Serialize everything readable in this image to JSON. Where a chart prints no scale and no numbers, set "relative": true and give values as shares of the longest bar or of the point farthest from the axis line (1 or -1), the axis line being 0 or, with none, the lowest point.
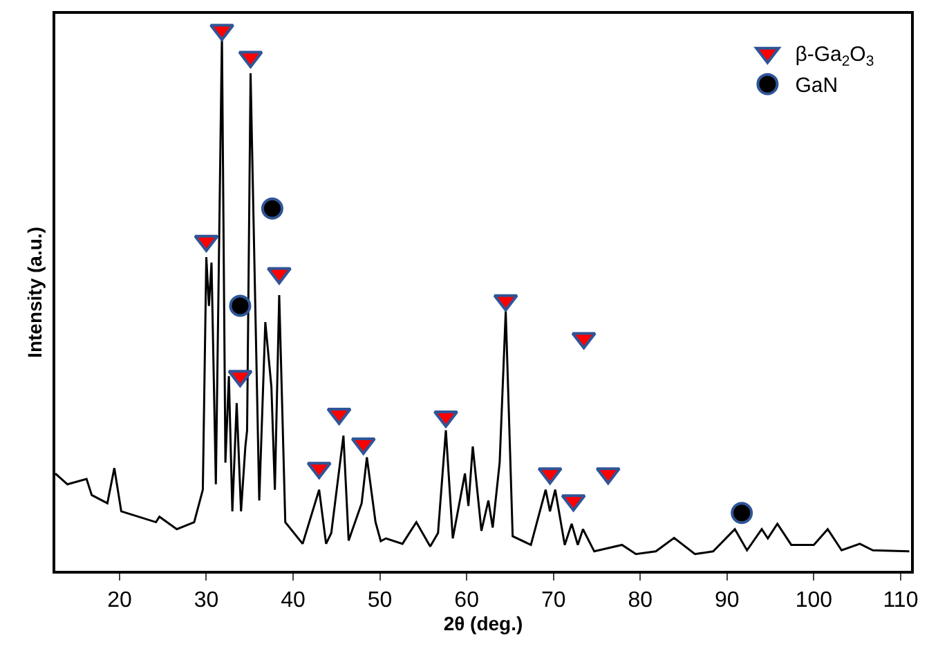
{
  "chart_data": {
    "type": "line",
    "xlabel": "2θ (deg.)",
    "ylabel": "Intensity (a.u.)",
    "relative": true,
    "xlim": [
      12.6,
      111.2
    ],
    "xticks": [
      20,
      30,
      40,
      50,
      60,
      70,
      80,
      90,
      100,
      110
    ],
    "legend": "top right",
    "series": [
      {
        "color": "#000000",
        "marker": "none",
        "x": [
          12.6,
          14.0,
          16.2,
          16.8,
          18.6,
          19.4,
          20.2,
          24.2,
          24.6,
          26.6,
          28.6,
          29.6,
          30.0,
          30.3,
          30.6,
          31.1,
          31.8,
          32.2,
          32.6,
          33.0,
          33.5,
          34.0,
          34.5,
          34.7,
          35.1,
          36.1,
          36.8,
          37.5,
          37.9,
          38.4,
          39.1,
          41.1,
          43.0,
          43.8,
          44.4,
          45.8,
          46.4,
          47.9,
          48.5,
          49.5,
          50.1,
          50.7,
          52.6,
          54.2,
          55.8,
          56.7,
          57.6,
          58.4,
          59.8,
          60.2,
          60.7,
          61.7,
          62.5,
          63.0,
          63.8,
          64.5,
          65.3,
          67.4,
          69.1,
          69.6,
          70.2,
          71.3,
          72.1,
          72.8,
          73.4,
          74.7,
          77.9,
          79.5,
          81.8,
          83.9,
          86.3,
          88.4,
          90.9,
          92.3,
          94.0,
          94.7,
          95.8,
          97.4,
          100.0,
          101.6,
          103.2,
          105.3,
          106.8,
          111.0
        ],
        "values": [
          0.18,
          0.16,
          0.17,
          0.14,
          0.125,
          0.19,
          0.11,
          0.09,
          0.1,
          0.077,
          0.09,
          0.15,
          0.58,
          0.49,
          0.57,
          0.16,
          0.99,
          0.2,
          0.36,
          0.11,
          0.31,
          0.11,
          0.23,
          0.26,
          0.92,
          0.13,
          0.46,
          0.34,
          0.15,
          0.51,
          0.09,
          0.05,
          0.15,
          0.05,
          0.07,
          0.25,
          0.056,
          0.125,
          0.21,
          0.09,
          0.055,
          0.06,
          0.05,
          0.09,
          0.045,
          0.07,
          0.26,
          0.06,
          0.18,
          0.12,
          0.23,
          0.074,
          0.13,
          0.08,
          0.2,
          0.48,
          0.064,
          0.048,
          0.15,
          0.11,
          0.15,
          0.048,
          0.087,
          0.048,
          0.077,
          0.036,
          0.048,
          0.031,
          0.036,
          0.061,
          0.031,
          0.036,
          0.077,
          0.038,
          0.077,
          0.06,
          0.087,
          0.048,
          0.048,
          0.077,
          0.038,
          0.05,
          0.038,
          0.036
        ]
      },
      {
        "type": "scatter",
        "name": "β-Ga$_{2}$O$_{3}$",
        "color": "#ff0000",
        "marker": "triangle",
        "x": [
          30.0,
          31.8,
          35.1,
          33.9,
          38.4,
          43.0,
          45.3,
          48.1,
          57.6,
          64.5,
          73.5,
          69.6,
          72.3,
          76.3
        ],
        "values": [
          0.61,
          1.0,
          0.95,
          0.36,
          0.55,
          0.19,
          0.29,
          0.235,
          0.285,
          0.5,
          0.43,
          0.18,
          0.13,
          0.18
        ]
      },
      {
        "type": "scatter",
        "name": "GaN",
        "color": "#000000",
        "marker": "circle",
        "x": [
          37.6,
          33.9,
          91.7
        ],
        "values": [
          0.67,
          0.49,
          0.107
        ]
      }
    ]
  }
}
